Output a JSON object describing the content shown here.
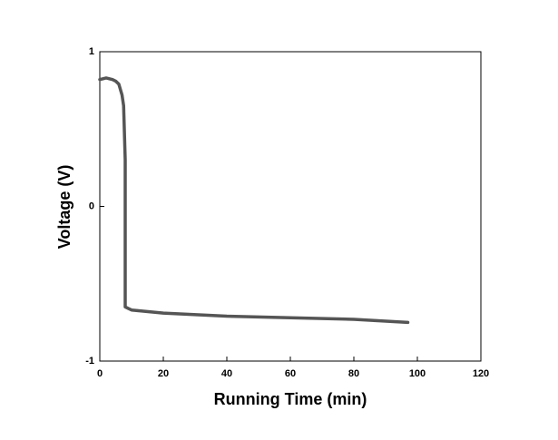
{
  "chart_data": {
    "type": "line",
    "xlabel": "Running Time (min)",
    "ylabel": "Voltage (V)",
    "x": [
      0,
      2,
      4,
      5,
      6,
      7,
      7.5,
      8,
      8,
      9,
      10,
      20,
      40,
      60,
      80,
      97
    ],
    "series": [
      {
        "color": "#555555",
        "values": [
          0.82,
          0.83,
          0.82,
          0.81,
          0.79,
          0.72,
          0.65,
          0.3,
          -0.65,
          -0.66,
          -0.67,
          -0.69,
          -0.71,
          -0.72,
          -0.73,
          -0.75
        ]
      }
    ],
    "xlim": [
      0,
      120
    ],
    "xticks": [
      0,
      20,
      40,
      60,
      80,
      100,
      120
    ],
    "ylim": [
      -1,
      1
    ],
    "yticks": [
      -1,
      0,
      1
    ]
  }
}
